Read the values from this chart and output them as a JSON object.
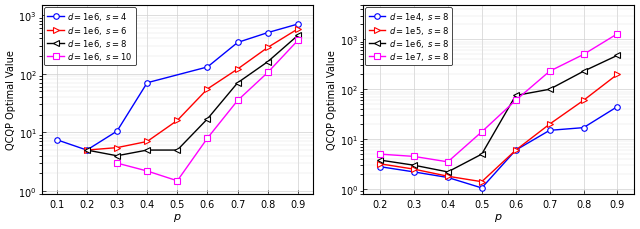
{
  "left": {
    "p": [
      0.1,
      0.2,
      0.3,
      0.4,
      0.5,
      0.6,
      0.7,
      0.8,
      0.9
    ],
    "series": [
      {
        "label": "$d = 1\\mathrm{e}6,\\ s = 4$",
        "color": "#0000FF",
        "marker": "o",
        "markersize": 4,
        "values": [
          7.5,
          5.0,
          10.5,
          70.0,
          null,
          130.0,
          340.0,
          500.0,
          700.0
        ]
      },
      {
        "label": "$d = 1\\mathrm{e}6,\\ s = 6$",
        "color": "#FF0000",
        "marker": ">",
        "markersize": 4,
        "values": [
          null,
          5.0,
          5.5,
          7.0,
          16.0,
          55.0,
          120.0,
          280.0,
          580.0
        ]
      },
      {
        "label": "$d = 1\\mathrm{e}6,\\ s = 8$",
        "color": "#000000",
        "marker": "<",
        "markersize": 4,
        "values": [
          null,
          5.0,
          4.0,
          5.0,
          5.0,
          17.0,
          70.0,
          160.0,
          450.0
        ]
      },
      {
        "label": "$d = 1\\mathrm{e}6,\\ s = 10$",
        "color": "#FF00FF",
        "marker": "s",
        "markersize": 4,
        "values": [
          null,
          null,
          3.0,
          2.2,
          1.5,
          8.0,
          35.0,
          105.0,
          370.0
        ]
      }
    ],
    "ylabel": "QCQP Optimal Value",
    "xlabel": "$p$",
    "ylim": [
      0.9,
      1500.0
    ],
    "xlim": [
      0.05,
      0.95
    ],
    "xticks": [
      0.1,
      0.2,
      0.3,
      0.4,
      0.5,
      0.6,
      0.7,
      0.8,
      0.9
    ],
    "xtick_labels": [
      "0.1",
      "0.2",
      "0.3",
      "0.4",
      "0.5",
      "0.6",
      "0.7",
      "0.8",
      "0.9"
    ]
  },
  "right": {
    "p": [
      0.2,
      0.3,
      0.4,
      0.5,
      0.6,
      0.7,
      0.8,
      0.9
    ],
    "series": [
      {
        "label": "$d = 1\\mathrm{e}4,\\ s = 8$",
        "color": "#0000FF",
        "marker": "o",
        "markersize": 4,
        "values": [
          2.8,
          2.2,
          1.7,
          1.05,
          6.0,
          15.0,
          17.0,
          45.0
        ]
      },
      {
        "label": "$d = 1\\mathrm{e}5,\\ s = 8$",
        "color": "#FF0000",
        "marker": ">",
        "markersize": 4,
        "values": [
          3.2,
          2.5,
          1.8,
          1.4,
          6.0,
          20.0,
          60.0,
          200.0
        ]
      },
      {
        "label": "$d = 1\\mathrm{e}6,\\ s = 8$",
        "color": "#000000",
        "marker": "<",
        "markersize": 4,
        "values": [
          3.8,
          3.0,
          2.2,
          5.0,
          75.0,
          100.0,
          230.0,
          480.0
        ]
      },
      {
        "label": "$d = 1\\mathrm{e}7,\\ s = 8$",
        "color": "#FF00FF",
        "marker": "s",
        "markersize": 4,
        "values": [
          5.0,
          4.5,
          3.5,
          14.0,
          60.0,
          230.0,
          500.0,
          1300.0
        ]
      }
    ],
    "ylabel": "QCQP Optimal Value",
    "xlabel": "$p$",
    "ylim": [
      0.8,
      5000.0
    ],
    "xlim": [
      0.15,
      0.95
    ],
    "xticks": [
      0.2,
      0.3,
      0.4,
      0.5,
      0.6,
      0.7,
      0.8,
      0.9
    ],
    "xtick_labels": [
      "0.2",
      "0.3",
      "0.4",
      "0.5",
      "0.6",
      "0.7",
      "0.8",
      "0.9"
    ]
  }
}
